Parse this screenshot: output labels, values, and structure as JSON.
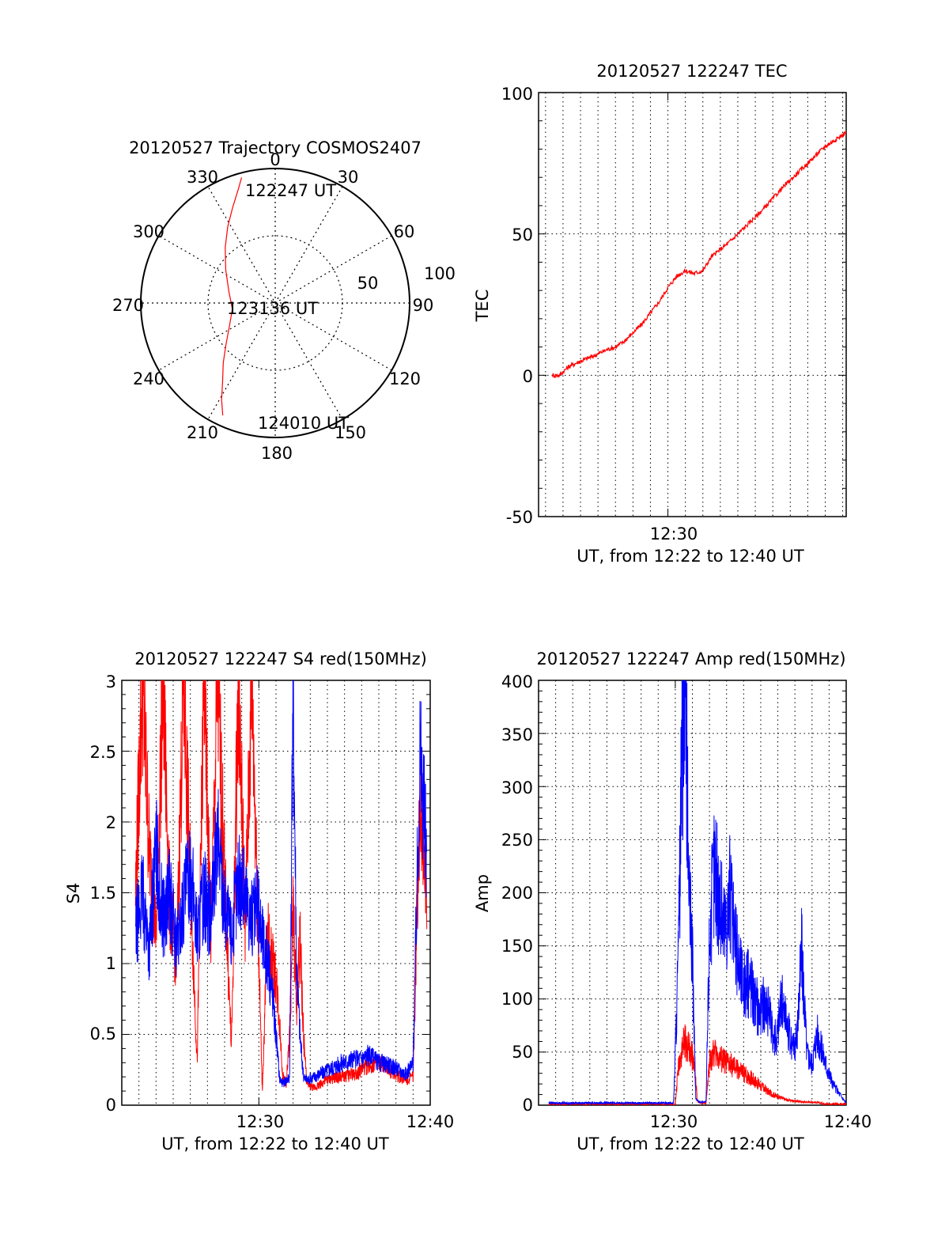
{
  "colors": {
    "red": "#ff0000",
    "blue": "#0000ff",
    "axis": "#000000"
  },
  "chart_data": [
    {
      "type": "polar",
      "title": "20120527 Trajectory COSMOS2407",
      "angle_labels": [
        "0",
        "30",
        "60",
        "90",
        "120",
        "150",
        "180",
        "210",
        "240",
        "270",
        "300",
        "330"
      ],
      "radial_ticks": [
        {
          "elevation": 50,
          "label": "50"
        },
        {
          "elevation": 100,
          "label": "100"
        }
      ],
      "rings_elevation": [
        0,
        50,
        100
      ],
      "annotations": [
        "122247 UT",
        "123136 UT",
        "124010 UT"
      ],
      "series": [
        {
          "color": "red",
          "azimuth": [
            345,
            342,
            336,
            328,
            318,
            304,
            284,
            262,
            244,
            230,
            221,
            214,
            209,
            205
          ],
          "elevation": [
            3,
            10,
            20,
            30,
            40,
            50,
            58,
            61,
            56,
            47,
            37,
            27,
            16,
            7
          ]
        }
      ]
    },
    {
      "type": "line",
      "title": "20120527 122247 TEC",
      "xlabel": "UT, from 12:22 to 12:40 UT",
      "ylabel": "TEC",
      "xlim": [
        22.6,
        40.2
      ],
      "ylim": [
        -50,
        100
      ],
      "xticks": [
        {
          "value": 30,
          "label": "12:30"
        }
      ],
      "yticks": [
        {
          "value": -50,
          "label": "-50"
        },
        {
          "value": 0,
          "label": "0"
        },
        {
          "value": 50,
          "label": "50"
        },
        {
          "value": 100,
          "label": "100"
        }
      ],
      "grid": true,
      "series": [
        {
          "color": "red",
          "x": [
            23.4,
            23.8,
            24.3,
            25.0,
            25.8,
            26.5,
            27.0,
            27.5,
            28.0,
            28.5,
            29.0,
            29.5,
            30.0,
            30.5,
            31.0,
            31.5,
            32.0,
            32.5,
            33.5,
            34.5,
            35.5,
            36.5,
            37.5,
            38.5,
            39.0,
            39.5,
            40.0,
            40.2
          ],
          "y": [
            0,
            0,
            3,
            5,
            7,
            9,
            10,
            12,
            15,
            18,
            22,
            26,
            31,
            35,
            37,
            36,
            37,
            42,
            47,
            53,
            59,
            66,
            72,
            78,
            81,
            83,
            85,
            86
          ]
        }
      ]
    },
    {
      "type": "line",
      "title": "20120527 122247 S4 red(150MHz)",
      "xlabel": "UT, from 12:22 to 12:40 UT",
      "ylabel": "S4",
      "xlim": [
        22.0,
        40.0
      ],
      "ylim": [
        0,
        3
      ],
      "xticks": [
        {
          "value": 30,
          "label": "12:30"
        },
        {
          "value": 40,
          "label": "12:40"
        }
      ],
      "yticks": [
        {
          "value": 0,
          "label": "0"
        },
        {
          "value": 0.5,
          "label": "0.5"
        },
        {
          "value": 1,
          "label": "1"
        },
        {
          "value": 1.5,
          "label": "1.5"
        },
        {
          "value": 2,
          "label": "2"
        },
        {
          "value": 2.5,
          "label": "2.5"
        },
        {
          "value": 3,
          "label": "3"
        }
      ],
      "grid": true,
      "series": [
        {
          "color": "red",
          "x": [
            22.8,
            23.2,
            23.6,
            24.0,
            24.4,
            24.8,
            25.2,
            25.6,
            26.0,
            26.4,
            26.8,
            27.2,
            27.6,
            28.0,
            28.4,
            28.8,
            29.2,
            29.6,
            29.9,
            30.2,
            30.5,
            30.8,
            31.0,
            31.2,
            31.4,
            31.6,
            31.8,
            32.0,
            32.2,
            32.4,
            32.6,
            32.8,
            33.2,
            34.0,
            34.8,
            35.6,
            36.4,
            37.0,
            37.6,
            38.2,
            38.6,
            39.0,
            39.4,
            39.8
          ],
          "y": [
            1.5,
            3.0,
            1.8,
            1.2,
            3.0,
            1.4,
            1.0,
            3.0,
            1.6,
            0.3,
            3.0,
            1.2,
            3.0,
            1.6,
            0.4,
            3.0,
            1.3,
            3.0,
            1.5,
            0.1,
            1.2,
            1.0,
            0.9,
            0.6,
            0.2,
            0.15,
            0.5,
            1.4,
            0.7,
            1.2,
            0.5,
            0.15,
            0.12,
            0.18,
            0.2,
            0.22,
            0.28,
            0.3,
            0.25,
            0.2,
            0.18,
            0.2,
            2.2,
            1.5
          ]
        },
        {
          "color": "blue",
          "x": [
            22.8,
            23.2,
            23.6,
            24.0,
            24.4,
            24.8,
            25.2,
            25.6,
            26.0,
            26.4,
            26.8,
            27.2,
            27.6,
            28.0,
            28.4,
            28.8,
            29.2,
            29.6,
            29.9,
            30.2,
            30.5,
            30.8,
            31.0,
            31.2,
            31.4,
            31.6,
            31.8,
            32.0,
            32.2,
            32.4,
            32.6,
            32.8,
            33.2,
            34.0,
            34.8,
            35.6,
            36.4,
            37.0,
            37.6,
            38.2,
            38.6,
            39.0,
            39.4,
            39.8
          ],
          "y": [
            1.2,
            1.5,
            1.1,
            1.8,
            1.3,
            1.5,
            1.1,
            1.4,
            1.7,
            1.2,
            1.5,
            1.3,
            1.9,
            1.4,
            1.2,
            1.6,
            1.5,
            1.3,
            1.4,
            1.2,
            1.0,
            0.8,
            0.5,
            0.2,
            0.15,
            0.18,
            0.2,
            3.0,
            1.0,
            0.5,
            0.2,
            0.18,
            0.2,
            0.25,
            0.3,
            0.32,
            0.35,
            0.3,
            0.28,
            0.25,
            0.22,
            0.3,
            2.5,
            1.8
          ]
        }
      ]
    },
    {
      "type": "line",
      "title": "20120527 122247 Amp red(150MHz)",
      "xlabel": "UT, from 12:22 to 12:40 UT",
      "ylabel": "Amp",
      "xlim": [
        22.0,
        40.0
      ],
      "ylim": [
        0,
        400
      ],
      "xticks": [
        {
          "value": 30,
          "label": "12:30"
        },
        {
          "value": 40,
          "label": "12:40"
        }
      ],
      "yticks": [
        {
          "value": 0,
          "label": "0"
        },
        {
          "value": 50,
          "label": "50"
        },
        {
          "value": 100,
          "label": "100"
        },
        {
          "value": 150,
          "label": "150"
        },
        {
          "value": 200,
          "label": "200"
        },
        {
          "value": 250,
          "label": "250"
        },
        {
          "value": 300,
          "label": "300"
        },
        {
          "value": 350,
          "label": "350"
        },
        {
          "value": 400,
          "label": "400"
        }
      ],
      "grid": true,
      "series": [
        {
          "color": "red",
          "x": [
            22.6,
            25.0,
            27.5,
            30.0,
            30.2,
            30.5,
            30.8,
            31.1,
            31.3,
            31.6,
            31.8,
            32.0,
            32.3,
            32.6,
            33.0,
            33.5,
            34.0,
            34.5,
            35.0,
            35.5,
            36.0,
            36.5,
            37.0,
            37.5,
            38.0,
            38.5,
            39.0,
            39.5,
            40.0
          ],
          "y": [
            1,
            1,
            1,
            1,
            40,
            60,
            55,
            40,
            3,
            2,
            2,
            40,
            50,
            45,
            40,
            35,
            30,
            25,
            18,
            12,
            8,
            5,
            4,
            3,
            3,
            2,
            1,
            1,
            1
          ]
        },
        {
          "color": "blue",
          "x": [
            22.6,
            25.0,
            27.5,
            29.9,
            30.2,
            30.4,
            30.6,
            30.8,
            31.0,
            31.2,
            31.4,
            31.6,
            31.8,
            32.0,
            32.3,
            32.6,
            32.9,
            33.2,
            33.5,
            33.8,
            34.1,
            34.4,
            34.7,
            35.0,
            35.3,
            35.6,
            35.9,
            36.2,
            36.5,
            36.8,
            37.1,
            37.4,
            37.7,
            38.0,
            38.3,
            38.6,
            38.9,
            39.2,
            40.0
          ],
          "y": [
            2,
            2,
            2,
            2,
            150,
            340,
            380,
            200,
            140,
            6,
            3,
            3,
            3,
            160,
            230,
            190,
            170,
            200,
            150,
            130,
            110,
            120,
            95,
            90,
            100,
            75,
            60,
            100,
            80,
            55,
            60,
            150,
            50,
            40,
            70,
            50,
            35,
            20,
            2
          ]
        }
      ]
    }
  ]
}
